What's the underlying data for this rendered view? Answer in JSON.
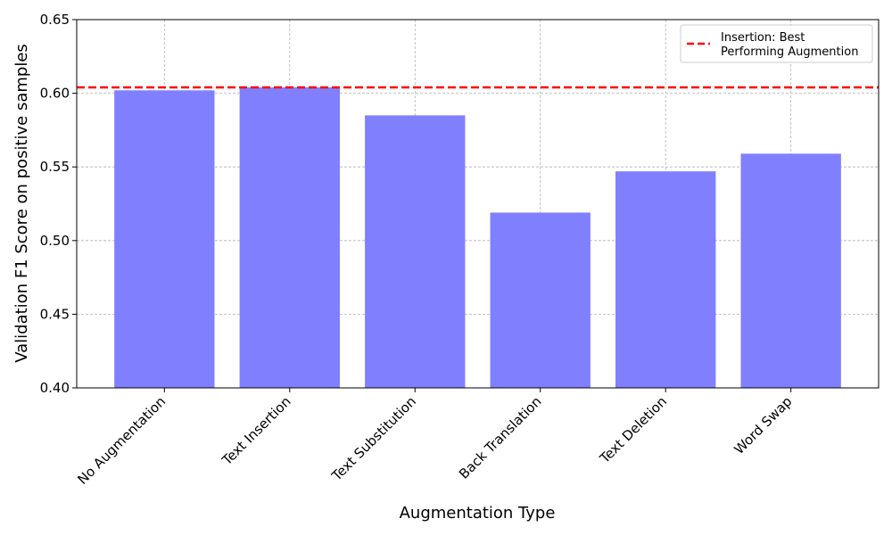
{
  "chart_data": {
    "type": "bar",
    "title": "",
    "xlabel": "Augmentation Type",
    "ylabel": "Validation F1 Score on positive samples",
    "categories": [
      "No Augmentation",
      "Text Insertion",
      "Text Substitution",
      "Back Translation",
      "Text Deletion",
      "Word Swap"
    ],
    "values": [
      0.602,
      0.604,
      0.585,
      0.519,
      0.547,
      0.559
    ],
    "ylim": [
      0.4,
      0.65
    ],
    "yticks": [
      "0.40",
      "0.45",
      "0.50",
      "0.55",
      "0.60",
      "0.65"
    ],
    "bar_color": "#8080ff",
    "grid": true,
    "reference_line": {
      "value": 0.604,
      "color": "#ff0000",
      "style": "dashed",
      "label_lines": [
        "Insertion: Best",
        "Performing Augmention"
      ]
    },
    "legend_position": "top-right"
  }
}
